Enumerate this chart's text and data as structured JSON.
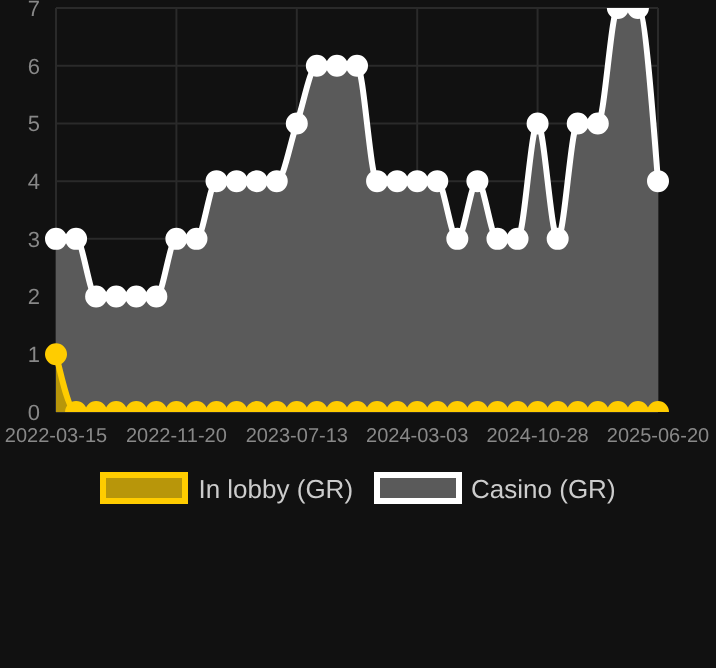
{
  "chart_data": {
    "type": "area",
    "categories": [
      "2022-03-15",
      null,
      null,
      null,
      null,
      null,
      "2022-11-20",
      null,
      null,
      null,
      null,
      null,
      "2023-07-13",
      null,
      null,
      null,
      null,
      null,
      "2024-03-03",
      null,
      null,
      null,
      null,
      null,
      "2024-10-28",
      null,
      null,
      null,
      null,
      null,
      "2025-06-20"
    ],
    "series": [
      {
        "name": "In lobby (GR)",
        "color": "#ffcc00",
        "values": [
          1,
          0,
          0,
          0,
          0,
          0,
          0,
          0,
          0,
          0,
          0,
          0,
          0,
          0,
          0,
          0,
          0,
          0,
          0,
          0,
          0,
          0,
          0,
          0,
          0,
          0,
          0,
          0,
          0,
          0,
          0
        ]
      },
      {
        "name": "Casino (GR)",
        "color": "#ffffff",
        "values": [
          3,
          3,
          2,
          2,
          2,
          2,
          3,
          3,
          4,
          4,
          4,
          4,
          5,
          6,
          6,
          6,
          4,
          4,
          4,
          4,
          3,
          4,
          3,
          3,
          5,
          3,
          5,
          5,
          7,
          7,
          4
        ]
      }
    ],
    "ylim": [
      0,
      7
    ],
    "yticks": [
      0,
      1,
      2,
      3,
      4,
      5,
      6,
      7
    ],
    "grid": true,
    "legend": "bottom",
    "marker": "circle",
    "line_style": "solid"
  }
}
